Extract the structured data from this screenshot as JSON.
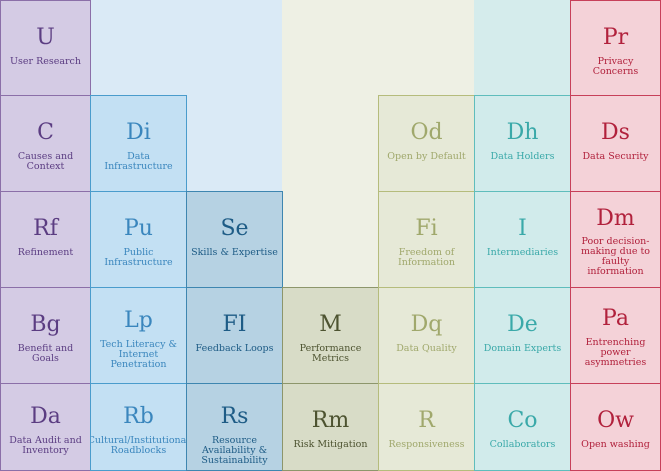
{
  "colors": {
    "purple": {
      "bg": "#d4cbe4",
      "border": "#8b6fa8",
      "text": "#5b3d82"
    },
    "blue": {
      "bg": "#c3e0f3",
      "border": "#4a9ccc",
      "text": "#3a86bd",
      "column": "#daeaf6"
    },
    "steel": {
      "bg": "#b6d2e3",
      "border": "#3e86b0",
      "text": "#1e5c86"
    },
    "olive": {
      "bg": "#d8dcc7",
      "border": "#8d966b",
      "text": "#4d5330",
      "column": "#eef0e4"
    },
    "lightolive": {
      "bg": "#e6e9d7",
      "border": "#b5bc7c",
      "text": "#a0a86c"
    },
    "teal": {
      "bg": "#d1ebeb",
      "border": "#5fbdbc",
      "text": "#3aa9a9",
      "column": "#d5ecec"
    },
    "red": {
      "bg": "#f4d2d8",
      "border": "#c7405a",
      "text": "#b1213c"
    }
  },
  "cells": [
    {
      "symbol": "U",
      "label": "User Research",
      "theme": "purple"
    },
    {
      "symbol": "C",
      "label": "Causes and Context",
      "theme": "purple"
    },
    {
      "symbol": "Rf",
      "label": "Refinement",
      "theme": "purple"
    },
    {
      "symbol": "Bg",
      "label": "Benefit and Goals",
      "theme": "purple"
    },
    {
      "symbol": "Da",
      "label": "Data Audit and Inventory",
      "theme": "purple"
    },
    {
      "symbol": "Di",
      "label": "Data Infrastructure",
      "theme": "blue"
    },
    {
      "symbol": "Pu",
      "label": "Public Infrastructure",
      "theme": "blue"
    },
    {
      "symbol": "Lp",
      "label": "Tech Literacy & Internet Penetration",
      "theme": "blue"
    },
    {
      "symbol": "Rb",
      "label": "Cultural/Institutional Roadblocks",
      "theme": "blue"
    },
    {
      "symbol": "Se",
      "label": "Skills & Expertise",
      "theme": "steel"
    },
    {
      "symbol": "FI",
      "label": "Feedback Loops",
      "theme": "steel"
    },
    {
      "symbol": "Rs",
      "label": "Resource Availability & Sustainability",
      "theme": "steel"
    },
    {
      "symbol": "M",
      "label": "Performance Metrics",
      "theme": "olive"
    },
    {
      "symbol": "Rm",
      "label": "Risk Mitigation",
      "theme": "olive"
    },
    {
      "symbol": "Od",
      "label": "Open by Default",
      "theme": "lightolive"
    },
    {
      "symbol": "Fi",
      "label": "Freedom of Information",
      "theme": "lightolive"
    },
    {
      "symbol": "Dq",
      "label": "Data Quality",
      "theme": "lightolive"
    },
    {
      "symbol": "R",
      "label": "Responsiveness",
      "theme": "lightolive"
    },
    {
      "symbol": "Dh",
      "label": "Data Holders",
      "theme": "teal"
    },
    {
      "symbol": "I",
      "label": "Intermediaries",
      "theme": "teal"
    },
    {
      "symbol": "De",
      "label": "Domain Experts",
      "theme": "teal"
    },
    {
      "symbol": "Co",
      "label": "Collaborators",
      "theme": "teal"
    },
    {
      "symbol": "Pr",
      "label": "Privacy Concerns",
      "theme": "red"
    },
    {
      "symbol": "Ds",
      "label": "Data Security",
      "theme": "red"
    },
    {
      "symbol": "Dm",
      "label": "Poor decision-making due to faulty information",
      "theme": "red"
    },
    {
      "symbol": "Pa",
      "label": "Entrenching power asymmetries",
      "theme": "red"
    },
    {
      "symbol": "Ow",
      "label": "Open washing",
      "theme": "red"
    }
  ]
}
